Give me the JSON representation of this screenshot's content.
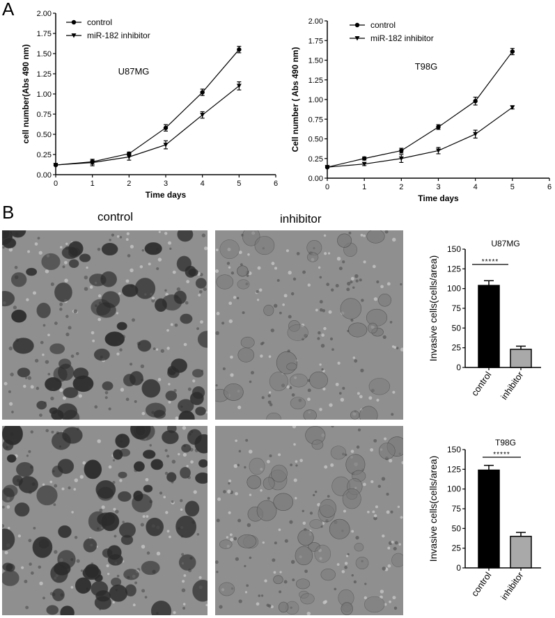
{
  "panel_labels": {
    "a": "A",
    "b": "B"
  },
  "panel_b": {
    "col_control": "control",
    "col_inhibitor": "inhibitor"
  },
  "colors": {
    "bar_control": "#000000",
    "bar_inhibitor": "#a9a9a9",
    "micrograph_bg": "#8f8f8f",
    "cell_dark": "#2b2b2b",
    "cell_light": "#7a7a7a"
  },
  "chart_data": [
    {
      "id": "growth_u87mg",
      "type": "line",
      "annotation": "U87MG",
      "xlabel": "Time days",
      "ylabel": "cell number(Abs 490 nm)",
      "xlim": [
        0,
        6
      ],
      "ylim": [
        0,
        2.0
      ],
      "xticks": [
        "0",
        "1",
        "2",
        "3",
        "4",
        "5",
        "6"
      ],
      "yticks": [
        "0.00",
        "0.25",
        "0.50",
        "0.75",
        "1.00",
        "1.25",
        "1.50",
        "1.75",
        "2.00"
      ],
      "legend_position": "top-left",
      "x": [
        0,
        1,
        2,
        3,
        4,
        5
      ],
      "series": [
        {
          "name": "control",
          "marker": "circle",
          "values": [
            0.12,
            0.16,
            0.26,
            0.58,
            1.02,
            1.55
          ],
          "errors": [
            0.01,
            0.03,
            0.02,
            0.04,
            0.04,
            0.04
          ]
        },
        {
          "name": "miR-182 inhibitor",
          "marker": "triangle-down",
          "values": [
            0.12,
            0.15,
            0.22,
            0.37,
            0.74,
            1.1
          ],
          "errors": [
            0.01,
            0.04,
            0.04,
            0.05,
            0.04,
            0.05
          ]
        }
      ]
    },
    {
      "id": "growth_t98g",
      "type": "line",
      "annotation": "T98G",
      "xlabel": "Time days",
      "ylabel": "Cell number ( Abs 490 nm)",
      "xlim": [
        0,
        6
      ],
      "ylim": [
        0,
        2.0
      ],
      "xticks": [
        "0",
        "1",
        "2",
        "3",
        "4",
        "5",
        "6"
      ],
      "yticks": [
        "0.00",
        "0.25",
        "0.50",
        "0.75",
        "1.00",
        "1.25",
        "1.50",
        "1.75",
        "2.00"
      ],
      "legend_position": "top-left",
      "x": [
        0,
        1,
        2,
        3,
        4,
        5
      ],
      "series": [
        {
          "name": "control",
          "marker": "circle",
          "values": [
            0.14,
            0.25,
            0.35,
            0.65,
            0.98,
            1.61
          ],
          "errors": [
            0.01,
            0.02,
            0.03,
            0.03,
            0.05,
            0.04
          ]
        },
        {
          "name": "miR-182 inhibitor",
          "marker": "triangle-down",
          "values": [
            0.14,
            0.18,
            0.25,
            0.35,
            0.56,
            0.9
          ],
          "errors": [
            0.01,
            0.02,
            0.05,
            0.04,
            0.05,
            0.02
          ]
        }
      ]
    },
    {
      "id": "invasion_u87mg",
      "type": "bar",
      "title": "U87MG",
      "ylabel": "Invasive cells(cells/area)",
      "categories": [
        "control",
        "inhibitor"
      ],
      "values": [
        104,
        23
      ],
      "errors": [
        6,
        4
      ],
      "ylim": [
        0,
        150
      ],
      "yticks": [
        "0",
        "25",
        "50",
        "75",
        "100",
        "125",
        "150"
      ],
      "significance": "*****"
    },
    {
      "id": "invasion_t98g",
      "type": "bar",
      "title": "T98G",
      "ylabel": "Invasive cells(cells/area)",
      "categories": [
        "control",
        "inhibitor"
      ],
      "values": [
        124,
        40
      ],
      "errors": [
        6,
        5
      ],
      "ylim": [
        0,
        150
      ],
      "yticks": [
        "0",
        "25",
        "50",
        "75",
        "100",
        "125",
        "150"
      ],
      "significance": "*****"
    }
  ]
}
